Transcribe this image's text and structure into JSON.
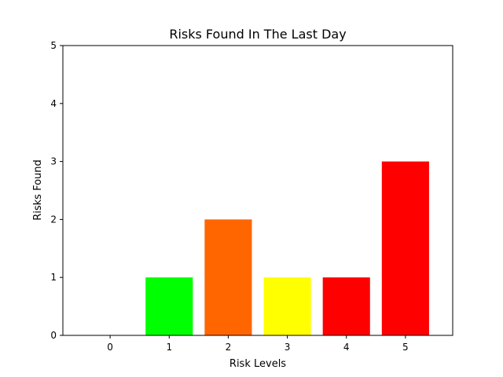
{
  "chart_data": {
    "type": "bar",
    "title": "Risks Found In The Last Day",
    "xlabel": "Risk Levels",
    "ylabel": "Risks Found",
    "categories": [
      "0",
      "1",
      "2",
      "3",
      "4",
      "5"
    ],
    "values": [
      0,
      1,
      2,
      1,
      1,
      3
    ],
    "colors": [
      "#ffffff",
      "#00ff00",
      "#ff6600",
      "#ffff00",
      "#ff0000",
      "#ff0000"
    ],
    "xlim": [
      -0.8,
      5.8
    ],
    "ylim": [
      0,
      5
    ],
    "yticks": [
      0,
      1,
      2,
      3,
      4,
      5
    ],
    "grid": false,
    "legend": "none"
  }
}
